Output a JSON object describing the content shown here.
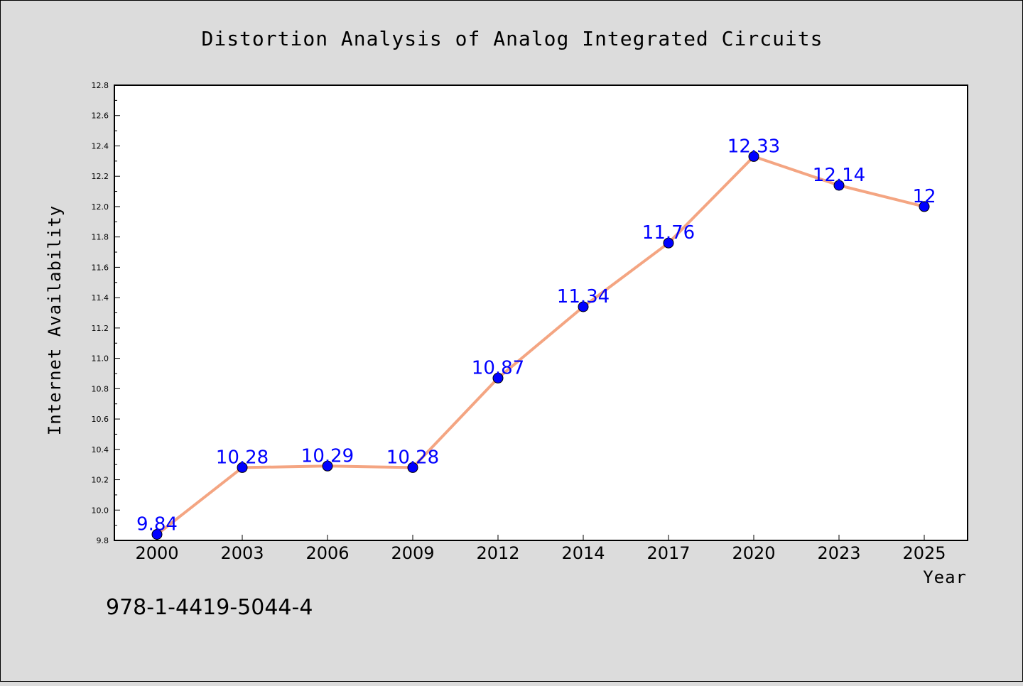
{
  "chart_data": {
    "type": "line",
    "title": "Distortion Analysis of Analog Integrated Circuits",
    "xlabel": "Year",
    "ylabel": "Internet Availability",
    "categories": [
      "2000",
      "2003",
      "2006",
      "2009",
      "2012",
      "2014",
      "2017",
      "2020",
      "2023",
      "2025"
    ],
    "series": [
      {
        "values": [
          9.84,
          10.28,
          10.29,
          10.28,
          10.87,
          11.34,
          11.76,
          12.33,
          12.14,
          12
        ]
      }
    ],
    "data_labels": [
      "9.84",
      "10.28",
      "10.29",
      "10.28",
      "10.87",
      "11.34",
      "11.76",
      "12.33",
      "12.14",
      "12"
    ],
    "ylim": [
      9.8,
      12.8
    ],
    "yticks": [
      "9.8",
      "10.0",
      "10.2",
      "10.4",
      "10.6",
      "10.8",
      "11.0",
      "11.2",
      "11.4",
      "11.6",
      "11.8",
      "12.0",
      "12.2",
      "12.4",
      "12.6",
      "12.8"
    ],
    "grid": false,
    "legend": "none",
    "colors": {
      "line": "#f4a582",
      "marker": "#0000ff",
      "label": "#0000ff",
      "background": "#dcdcdc",
      "plot_background": "#ffffff"
    }
  },
  "footer": {
    "isbn": "978-1-4419-5044-4"
  }
}
